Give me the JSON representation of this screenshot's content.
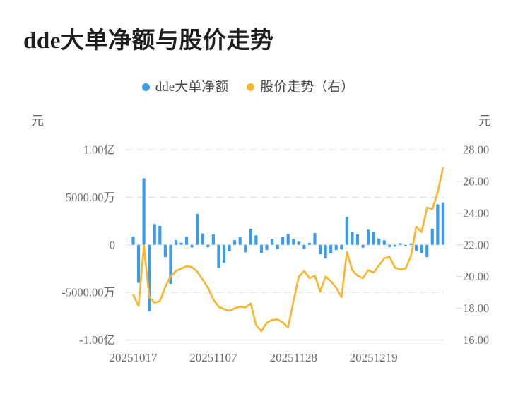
{
  "header": {
    "title": "dde大单净额与股价走势"
  },
  "legend": {
    "items": [
      {
        "label": "dde大单净额",
        "color": "#3E9BE9"
      },
      {
        "label": "股价走势（右）",
        "color": "#FBB42C"
      }
    ]
  },
  "chart_data": {
    "type": "bar",
    "title": "dde大单净额与股价走势",
    "combo": "bar + line (dual axis)",
    "x_ticks": [
      {
        "index": 0,
        "label": "20251017"
      },
      {
        "index": 15,
        "label": "20251107"
      },
      {
        "index": 30,
        "label": "20251128"
      },
      {
        "index": 45,
        "label": "20251219"
      }
    ],
    "left_axis": {
      "unit": "元",
      "range": [
        -100000000,
        100000000
      ],
      "tick_values": [
        100000000,
        50000000,
        0,
        -50000000,
        -100000000
      ],
      "tick_labels": [
        "1.00亿",
        "5000.00万",
        "0",
        "-5000.00万",
        "-1.00亿"
      ]
    },
    "right_axis": {
      "unit": "元",
      "range": [
        16,
        28
      ],
      "tick_values": [
        28,
        26,
        24,
        22,
        20,
        18,
        16
      ],
      "tick_labels": [
        "28.00",
        "26.00",
        "24.00",
        "22.00",
        "20.00",
        "18.00",
        "16.00"
      ]
    },
    "grid": {
      "dashed_values": [
        100000000,
        50000000,
        0,
        -50000000
      ],
      "solid_bottom_value": -100000000,
      "grid_color": "#e4e4e4"
    },
    "series": [
      {
        "name": "dde大单净额",
        "type": "bar",
        "axis": "left",
        "color": "#3E9BE9",
        "values": [
          8500000,
          -40000000,
          70000000,
          -70000000,
          22000000,
          20000000,
          -13000000,
          -41000000,
          5000000,
          2300000,
          8400000,
          -2800000,
          32500000,
          12000000,
          -2500000,
          11000000,
          -24400000,
          -18700000,
          -7000000,
          5000000,
          8000000,
          -8000000,
          17000000,
          10000000,
          -8750000,
          -5500000,
          6250000,
          -4500000,
          8000000,
          11500000,
          6250000,
          3400000,
          -4500000,
          2250000,
          12500000,
          -10000000,
          -14500000,
          -9000000,
          -5600000,
          -5000000,
          29300000,
          13700000,
          11000000,
          -3000000,
          16000000,
          14000000,
          6700000,
          4800000,
          -2500000,
          -2000000,
          1800000,
          -1600000,
          1600000,
          -6500000,
          -8700000,
          -13000000,
          17000000,
          42500000,
          44500000
        ]
      },
      {
        "name": "股价走势（右）",
        "type": "line",
        "axis": "right",
        "color": "#FBB42C",
        "values": [
          18.85,
          18.15,
          21.95,
          18.7,
          18.35,
          18.45,
          19.35,
          20.0,
          20.35,
          20.5,
          20.65,
          20.6,
          20.3,
          19.8,
          19.3,
          18.55,
          18.1,
          17.95,
          17.85,
          18.0,
          18.1,
          18.05,
          18.3,
          16.95,
          16.55,
          17.1,
          17.25,
          17.3,
          17.1,
          16.8,
          18.45,
          20.0,
          20.35,
          19.9,
          20.05,
          19.05,
          20.0,
          19.7,
          19.3,
          18.7,
          21.55,
          20.4,
          20.05,
          19.9,
          20.4,
          20.25,
          20.7,
          21.15,
          21.25,
          20.55,
          20.45,
          20.5,
          21.3,
          23.15,
          22.8,
          24.35,
          24.25,
          25.3,
          26.85
        ]
      }
    ]
  }
}
